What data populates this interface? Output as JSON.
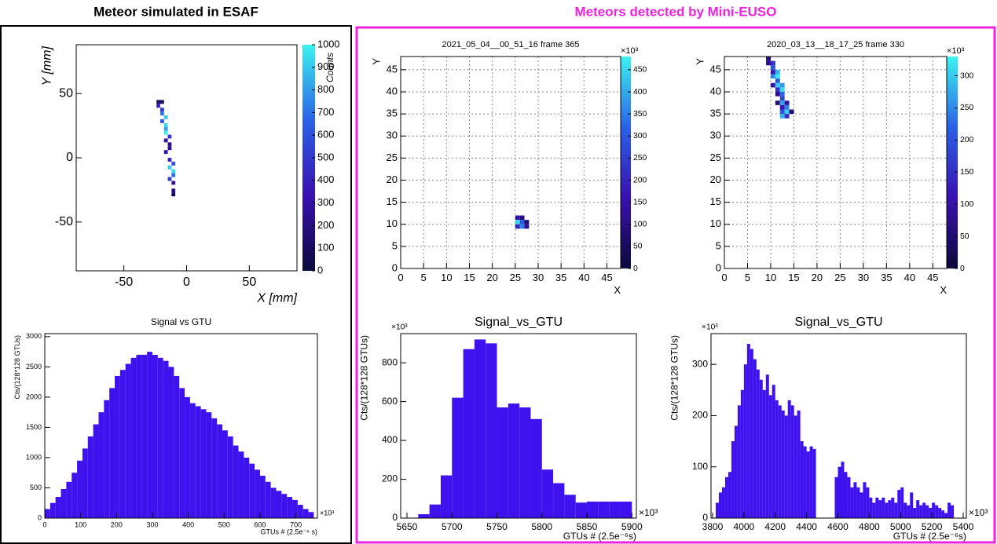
{
  "left_title": "Meteor simulated in ESAF",
  "right_title": "Meteors detected by Mini-EUSO",
  "chart_data": [
    {
      "type": "heatmap",
      "x_label": "X [mm]",
      "y_label": "Y [mm]",
      "z_label": "Counts",
      "xlim": [
        -88,
        88
      ],
      "ylim": [
        -88,
        88
      ],
      "xticks": [
        -50,
        0,
        50
      ],
      "yticks": [
        -50,
        0,
        50
      ],
      "zlim": [
        0,
        1000
      ],
      "zticks": [
        0,
        100,
        200,
        300,
        400,
        500,
        600,
        700,
        800,
        900,
        1000
      ],
      "grid": false,
      "colormap": [
        "#0b0a3c",
        "#3a10b0",
        "#2a62e6",
        "#3cf2f0"
      ],
      "cells": {
        "x": [
          -24,
          -21,
          -24,
          -21,
          -21,
          -18,
          -21,
          -18,
          -18,
          -18,
          -15,
          -18,
          -15,
          -15,
          -18,
          -15,
          -12,
          -15,
          -12,
          -12,
          -15,
          -12,
          -12,
          -12
        ],
        "y": [
          42,
          42,
          39,
          36,
          33,
          30,
          27,
          24,
          21,
          18,
          15,
          12,
          9,
          6,
          3,
          -3,
          -6,
          -9,
          -12,
          -15,
          -18,
          -21,
          -27,
          -30
        ],
        "values": [
          150,
          100,
          400,
          500,
          700,
          900,
          600,
          950,
          800,
          1000,
          500,
          300,
          200,
          250,
          350,
          400,
          600,
          900,
          950,
          700,
          500,
          300,
          200,
          100
        ]
      }
    },
    {
      "type": "histogram",
      "title": "Signal vs GTU",
      "x_label": "GTUs # (2.5e⁻⁶ s)",
      "y_label": "Cts/(128*128 GTUs)",
      "x_exponent": "×10³",
      "color": "#3e12ee",
      "xlim": [
        0,
        760
      ],
      "ylim": [
        0,
        3050
      ],
      "xticks": [
        0,
        100,
        200,
        300,
        400,
        500,
        600,
        700
      ],
      "yticks": [
        0,
        500,
        1000,
        1500,
        2000,
        2500,
        3000
      ],
      "bins": [
        0,
        15,
        30,
        45,
        60,
        75,
        90,
        105,
        120,
        135,
        150,
        165,
        180,
        195,
        210,
        225,
        240,
        255,
        270,
        285,
        300,
        315,
        330,
        345,
        360,
        375,
        390,
        405,
        420,
        435,
        450,
        465,
        480,
        495,
        510,
        525,
        540,
        555,
        570,
        585,
        600,
        615,
        630,
        645,
        660,
        675,
        690,
        705,
        720,
        735,
        750
      ],
      "values": [
        150,
        250,
        350,
        480,
        600,
        750,
        950,
        1150,
        1350,
        1550,
        1750,
        1950,
        2150,
        2350,
        2450,
        2550,
        2650,
        2700,
        2700,
        2750,
        2700,
        2650,
        2600,
        2500,
        2350,
        2150,
        2000,
        1900,
        1850,
        1800,
        1750,
        1650,
        1550,
        1450,
        1350,
        1200,
        1100,
        1000,
        900,
        800,
        700,
        600,
        500,
        450,
        400,
        350,
        300,
        220,
        150,
        100
      ]
    },
    {
      "type": "heatmap",
      "title": "2021_05_04__00_51_16 frame 365",
      "x_label": "X",
      "y_label": "Y",
      "z_exponent": "×10³",
      "xlim": [
        0,
        48
      ],
      "ylim": [
        0,
        48
      ],
      "xticks": [
        0,
        5,
        10,
        15,
        20,
        25,
        30,
        35,
        40,
        45
      ],
      "yticks": [
        0,
        5,
        10,
        15,
        20,
        25,
        30,
        35,
        40,
        45
      ],
      "zlim": [
        0,
        480
      ],
      "zticks": [
        0,
        50,
        100,
        150,
        200,
        250,
        300,
        350,
        400,
        450
      ],
      "grid": true,
      "colormap": [
        "#0b0a3c",
        "#3a10b0",
        "#2a62e6",
        "#3cf2f0"
      ],
      "cells": {
        "x": [
          25,
          26,
          25,
          26,
          27,
          25,
          26,
          27
        ],
        "y": [
          11,
          11,
          10,
          10,
          10,
          9,
          9,
          9
        ],
        "values": [
          150,
          100,
          450,
          300,
          80,
          200,
          350,
          120
        ]
      }
    },
    {
      "type": "heatmap",
      "title": "2020_03_13__18_17_25 frame 330",
      "x_label": "X",
      "y_label": "Y",
      "z_exponent": "×10³",
      "xlim": [
        0,
        48
      ],
      "ylim": [
        0,
        48
      ],
      "xticks": [
        0,
        5,
        10,
        15,
        20,
        25,
        30,
        35,
        40,
        45
      ],
      "yticks": [
        0,
        5,
        10,
        15,
        20,
        25,
        30,
        35,
        40,
        45
      ],
      "zlim": [
        0,
        330
      ],
      "zticks": [
        0,
        50,
        100,
        150,
        200,
        250,
        300
      ],
      "grid": true,
      "colormap": [
        "#0b0a3c",
        "#3a10b0",
        "#2a62e6",
        "#3cf2f0"
      ],
      "cells": {
        "x": [
          9,
          9,
          10,
          10,
          10,
          11,
          10,
          11,
          11,
          10,
          11,
          12,
          11,
          12,
          11,
          12,
          12,
          11,
          12,
          13,
          12,
          13,
          12,
          13,
          14,
          12,
          13
        ],
        "y": [
          47,
          46,
          46,
          45,
          44,
          44,
          43,
          43,
          42,
          41,
          41,
          41,
          40,
          40,
          39,
          39,
          38,
          37,
          37,
          37,
          36,
          36,
          35,
          35,
          35,
          34,
          34
        ],
        "values": [
          60,
          80,
          150,
          200,
          120,
          280,
          250,
          320,
          200,
          100,
          300,
          260,
          150,
          310,
          80,
          220,
          180,
          60,
          270,
          90,
          120,
          240,
          200,
          300,
          60,
          280,
          150
        ]
      }
    },
    {
      "type": "histogram",
      "title": "Signal_vs_GTU",
      "x_label": "GTUs # (2.5e⁻⁶s)",
      "y_label": "Cts/(128*128 GTUs)",
      "x_exponent": "×10³",
      "y_exponent": "×10³",
      "color": "#3e12ee",
      "xlim": [
        5643,
        5905
      ],
      "ylim": [
        0,
        950
      ],
      "xticks": [
        5650,
        5700,
        5750,
        5800,
        5850,
        5900
      ],
      "yticks": [
        0,
        200,
        400,
        600,
        800
      ],
      "bins": [
        5662.5,
        5675,
        5687.5,
        5700,
        5712.5,
        5725,
        5737.5,
        5750,
        5762.5,
        5775,
        5787.5,
        5800,
        5812.5,
        5825,
        5837.5,
        5850,
        5862.5,
        5875,
        5887.5,
        5900
      ],
      "values": [
        20,
        70,
        220,
        620,
        870,
        920,
        900,
        570,
        590,
        570,
        510,
        250,
        180,
        120,
        80,
        85,
        85,
        85,
        85
      ]
    },
    {
      "type": "histogram",
      "title": "Signal_vs_GTU",
      "x_label": "GTUs # (2.5e⁻⁶s)",
      "y_label": "Cts/(128*128 GTUs)",
      "x_exponent": "×10³",
      "y_exponent": "×10³",
      "color": "#3e12ee",
      "xlim": [
        3790,
        5420
      ],
      "ylim": [
        0,
        360
      ],
      "xticks": [
        3800,
        4000,
        4200,
        4400,
        4600,
        4800,
        5000,
        5200,
        5400
      ],
      "yticks": [
        0,
        100,
        200,
        300
      ],
      "bins": [
        3820,
        3840,
        3860,
        3880,
        3900,
        3920,
        3940,
        3960,
        3980,
        4000,
        4020,
        4040,
        4060,
        4080,
        4100,
        4120,
        4140,
        4160,
        4180,
        4200,
        4220,
        4240,
        4260,
        4280,
        4300,
        4320,
        4340,
        4360,
        4380,
        4400,
        4420,
        4440,
        4460,
        4480,
        4500,
        4520,
        4540,
        4560,
        4580,
        4600,
        4620,
        4640,
        4660,
        4680,
        4700,
        4720,
        4740,
        4760,
        4780,
        4800,
        4820,
        4840,
        4860,
        4880,
        4900,
        4920,
        4940,
        4960,
        4980,
        5000,
        5020,
        5040,
        5060,
        5080,
        5100,
        5120,
        5140,
        5160,
        5180,
        5200,
        5220,
        5240,
        5260,
        5280,
        5300,
        5320,
        5340
      ],
      "values": [
        30,
        50,
        60,
        80,
        90,
        150,
        180,
        220,
        250,
        300,
        340,
        330,
        310,
        290,
        270,
        250,
        280,
        240,
        260,
        230,
        220,
        210,
        200,
        230,
        220,
        200,
        210,
        150,
        140,
        130,
        140,
        135,
        0,
        0,
        0,
        0,
        0,
        0,
        80,
        100,
        110,
        90,
        80,
        60,
        70,
        60,
        50,
        70,
        60,
        40,
        30,
        40,
        35,
        40,
        30,
        35,
        40,
        30,
        55,
        60,
        30,
        25,
        50,
        20,
        35,
        25,
        30,
        25,
        20,
        30,
        25,
        20,
        15,
        10,
        30,
        25
      ]
    }
  ]
}
